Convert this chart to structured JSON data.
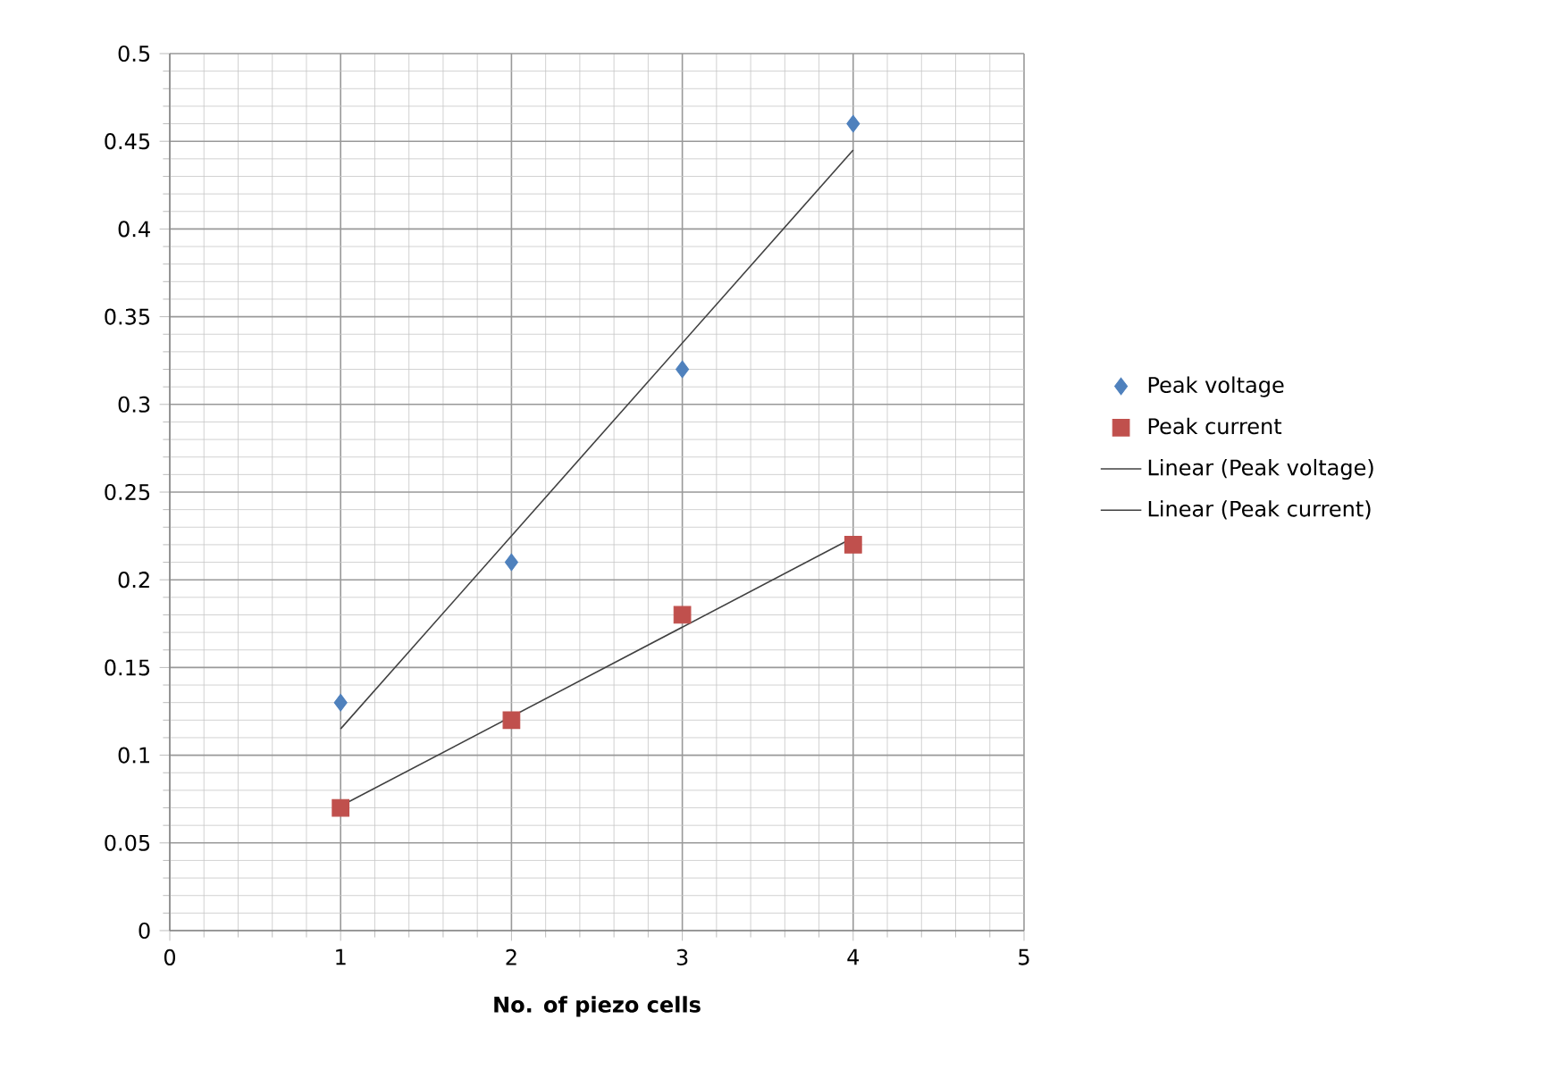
{
  "chart_data": {
    "type": "scatter",
    "xlabel": "No. of piezo cells",
    "xlim": [
      0,
      5
    ],
    "xticks": [
      0,
      1,
      2,
      3,
      4,
      5
    ],
    "ylim": [
      0,
      0.5
    ],
    "yticks": [
      0,
      0.05,
      0.1,
      0.15,
      0.2,
      0.25,
      0.3,
      0.35,
      0.4,
      0.45,
      0.5
    ],
    "grid": true,
    "legend": "right",
    "series": [
      {
        "name": "Peak voltage",
        "marker": "diamond",
        "color": "#4f81bd",
        "x": [
          1,
          2,
          3,
          4
        ],
        "values": [
          0.13,
          0.21,
          0.32,
          0.46
        ]
      },
      {
        "name": "Peak current",
        "marker": "square",
        "color": "#c0504d",
        "x": [
          1,
          2,
          3,
          4
        ],
        "values": [
          0.07,
          0.12,
          0.18,
          0.22
        ]
      },
      {
        "name": "Linear (Peak voltage)",
        "type": "line",
        "marker": "none",
        "color": "#404040",
        "x": [
          1,
          4
        ],
        "values": [
          0.115,
          0.445
        ]
      },
      {
        "name": "Linear (Peak current)",
        "type": "line",
        "marker": "none",
        "color": "#404040",
        "x": [
          1,
          4
        ],
        "values": [
          0.071,
          0.224
        ]
      }
    ]
  }
}
